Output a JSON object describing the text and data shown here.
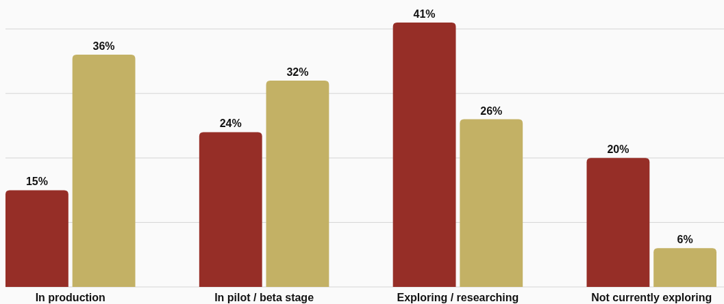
{
  "chart_data": {
    "type": "bar",
    "categories": [
      "In production",
      "In pilot / beta stage",
      "Exploring / researching",
      "Not currently exploring"
    ],
    "series": [
      {
        "color": "#962e27",
        "values": [
          15,
          24,
          41,
          20
        ],
        "value_labels": [
          "15%",
          "24%",
          "41%",
          "20%"
        ]
      },
      {
        "color": "#c3b165",
        "values": [
          36,
          32,
          26,
          6
        ],
        "value_labels": [
          "36%",
          "32%",
          "26%",
          "6%"
        ]
      }
    ],
    "grid": "y"
  }
}
